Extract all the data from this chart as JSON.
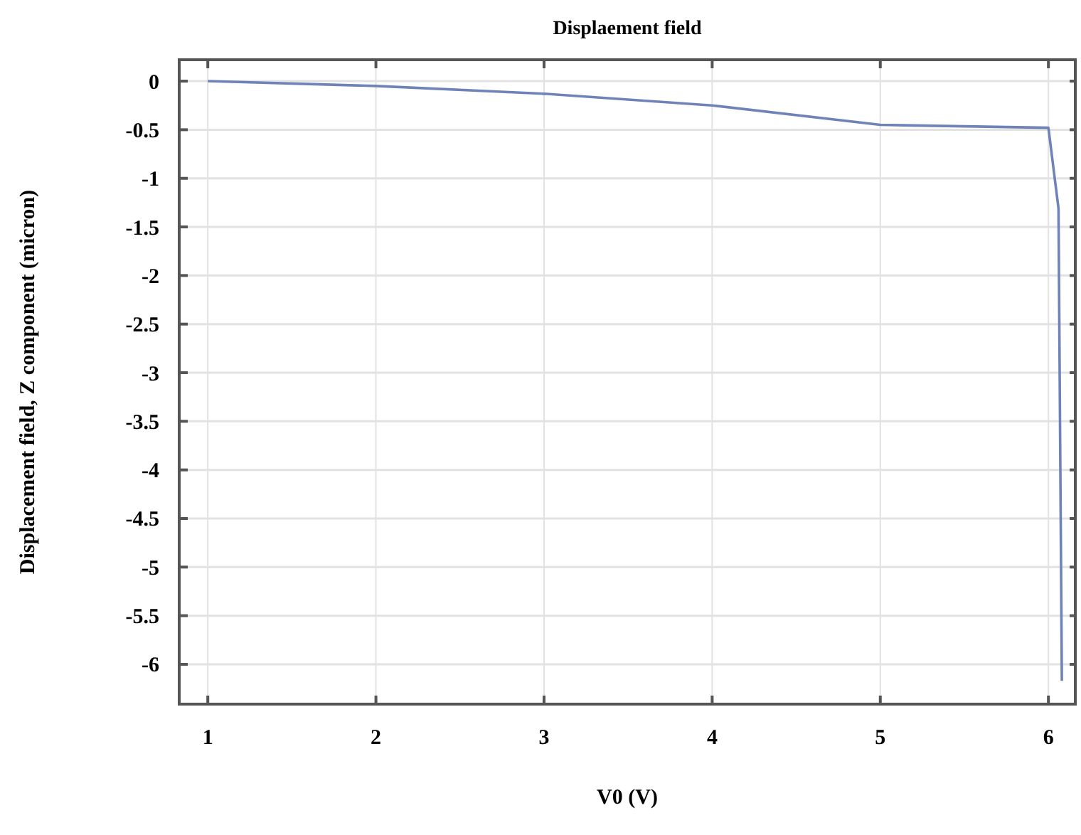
{
  "chart_data": {
    "type": "line",
    "title": "Displaement field",
    "xlabel": "V0 (V)",
    "ylabel": "Displacement field, Z component (micron)",
    "x": [
      1,
      2,
      3,
      4,
      5,
      6,
      6.06,
      6.08
    ],
    "series": [
      {
        "color": "#7083b8",
        "values": [
          0,
          -0.05,
          -0.13,
          -0.25,
          -0.45,
          -0.48,
          -1.31,
          -6.17
        ]
      }
    ],
    "xlim": [
      0.83,
      6.16
    ],
    "xticks": [
      1,
      2,
      3,
      4,
      5,
      6
    ],
    "ylim": [
      -6.41,
      0.22
    ],
    "yticks": [
      0,
      -0.5,
      -1,
      -1.5,
      -2,
      -2.5,
      -3,
      -3.5,
      -4,
      -4.5,
      -5,
      -5.5,
      -6
    ],
    "grid": true,
    "marker": "none",
    "line_style": "solid"
  }
}
